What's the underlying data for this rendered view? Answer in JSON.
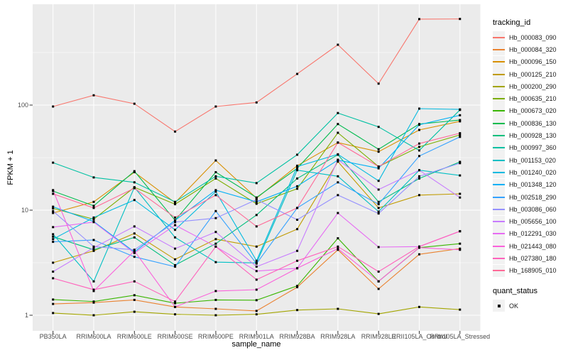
{
  "colors": {
    "page_bg": "#FFFFFF",
    "panel_bg": "#EBEBEB",
    "grid_major": "#FFFFFF",
    "grid_minor": "#FFFFFF",
    "tick_mark": "#333333",
    "axis_text": "#4D4D4D",
    "title_text": "#000000",
    "legend_key_bg": "#F2F2F2",
    "marker": "#000000"
  },
  "legend": {
    "color_title": "tracking_id",
    "shape_title": "quant_status",
    "shape_items": [
      {
        "label": "OK",
        "shape": "filled-black-square"
      }
    ]
  },
  "chart_data": {
    "type": "line",
    "title": "",
    "xlabel": "sample_name",
    "ylabel": "FPKM + 1",
    "y_scale": "log10",
    "y_tick_values": [
      1,
      10,
      100
    ],
    "y_tick_labels": [
      "1",
      "10",
      "100"
    ],
    "y_minor_values": [
      3.162,
      31.62,
      316.2
    ],
    "ylim_displayed": [
      0.71,
      912
    ],
    "grid": "on",
    "legend_position": "right",
    "point_marker": "black-square",
    "x_categories": [
      "PB350LA",
      "RRIM600LA",
      "RRIM600LE",
      "RRIM600SE",
      "RRIM600PE",
      "RRIM901LA",
      "RRIM928BA",
      "RRIM928LA",
      "RRIM928LE",
      "RRII105LA_Control",
      "RRII105LA_Stressed"
    ],
    "series": [
      {
        "name": "Hb_000083_090",
        "color": "#F8766D",
        "values": [
          97,
          124,
          103,
          56,
          97,
          106,
          198,
          375,
          160,
          658,
          660
        ]
      },
      {
        "name": "Hb_000084_320",
        "color": "#EA8331",
        "values": [
          1.28,
          1.32,
          1.4,
          1.2,
          1.15,
          1.1,
          1.85,
          4.2,
          1.78,
          3.8,
          4.3
        ]
      },
      {
        "name": "Hb_000096_150",
        "color": "#D89000",
        "values": [
          9.4,
          12,
          23,
          11.8,
          29.7,
          13,
          26.5,
          44,
          36,
          58,
          70
        ]
      },
      {
        "name": "Hb_000125_210",
        "color": "#C09B00",
        "values": [
          3.16,
          4.1,
          6,
          3.4,
          5.3,
          4.5,
          6.6,
          29,
          10.5,
          13.9,
          14.3
        ]
      },
      {
        "name": "Hb_000200_290",
        "color": "#A3A500",
        "values": [
          1.05,
          1.0,
          1.08,
          1.02,
          1.0,
          1.02,
          1.12,
          1.15,
          1.03,
          1.2,
          1.13
        ]
      },
      {
        "name": "Hb_000635_210",
        "color": "#7CAE00",
        "values": [
          10.4,
          8.2,
          16.5,
          11.4,
          20,
          11.5,
          16,
          54.5,
          26,
          40,
          52
        ]
      },
      {
        "name": "Hb_000673_020",
        "color": "#39B600",
        "values": [
          1.41,
          1.35,
          1.55,
          1.3,
          1.4,
          1.39,
          1.9,
          5.4,
          2.1,
          4.4,
          4.8
        ]
      },
      {
        "name": "Hb_000836_130",
        "color": "#00BB4E",
        "values": [
          15.2,
          11,
          23.5,
          8,
          23,
          13.2,
          25,
          66,
          38,
          66,
          72
        ]
      },
      {
        "name": "Hb_000928_130",
        "color": "#00BF7D",
        "values": [
          5.6,
          4.2,
          5.5,
          3,
          4.8,
          9,
          20,
          33.7,
          12,
          20,
          28.8
        ]
      },
      {
        "name": "Hb_000997_360",
        "color": "#00C1A3",
        "values": [
          28.3,
          20.5,
          18.4,
          12,
          21,
          18.1,
          33.7,
          84,
          62,
          37,
          90
        ]
      },
      {
        "name": "Hb_001153_020",
        "color": "#00BFC4",
        "values": [
          5.9,
          2.1,
          16.5,
          5.5,
          3.2,
          3.15,
          24,
          21,
          9.7,
          24,
          21.4
        ]
      },
      {
        "name": "Hb_001240_020",
        "color": "#00BAE0",
        "values": [
          5.3,
          8.5,
          12.5,
          6.5,
          15,
          3.3,
          26,
          34,
          19,
          92.5,
          91
        ]
      },
      {
        "name": "Hb_001348_120",
        "color": "#00B0F6",
        "values": [
          10.8,
          7.8,
          4,
          8,
          15.5,
          12,
          16.9,
          30,
          25,
          65,
          80
        ]
      },
      {
        "name": "Hb_002518_290",
        "color": "#35A2FF",
        "values": [
          5,
          5.2,
          3.6,
          2.9,
          9.8,
          3.1,
          10.5,
          18.4,
          11.4,
          32.7,
          49.8
        ]
      },
      {
        "name": "Hb_003086_060",
        "color": "#9590FF",
        "values": [
          9.8,
          4.5,
          4.2,
          7.7,
          8.4,
          12.6,
          8.1,
          13.9,
          9.3,
          21,
          28
        ]
      },
      {
        "name": "Hb_005656_100",
        "color": "#C77CFF",
        "values": [
          2.6,
          4.4,
          7,
          4.3,
          6.2,
          2.9,
          4.1,
          30.2,
          15.7,
          24,
          13.2
        ]
      },
      {
        "name": "Hb_012291_030",
        "color": "#E76BF3",
        "values": [
          6.9,
          7.7,
          3.9,
          7.2,
          4.5,
          2.63,
          2.8,
          9.4,
          4.45,
          4.5,
          6.3
        ]
      },
      {
        "name": "Hb_021443_080",
        "color": "#FA62DB",
        "values": [
          15.5,
          1.7,
          4.1,
          1.2,
          1.7,
          1.75,
          2.8,
          4.3,
          2.1,
          4.4,
          4.2
        ]
      },
      {
        "name": "Hb_027380_180",
        "color": "#FF62BC",
        "values": [
          2.25,
          1.75,
          2.1,
          1.35,
          4.5,
          2.18,
          3.3,
          4.5,
          2.6,
          4.5,
          6.3
        ]
      },
      {
        "name": "Hb_168905_010",
        "color": "#FF6A98",
        "values": [
          14.3,
          10.5,
          16.2,
          8.5,
          13.9,
          7,
          10.5,
          44,
          26,
          43,
          54
        ]
      }
    ]
  }
}
